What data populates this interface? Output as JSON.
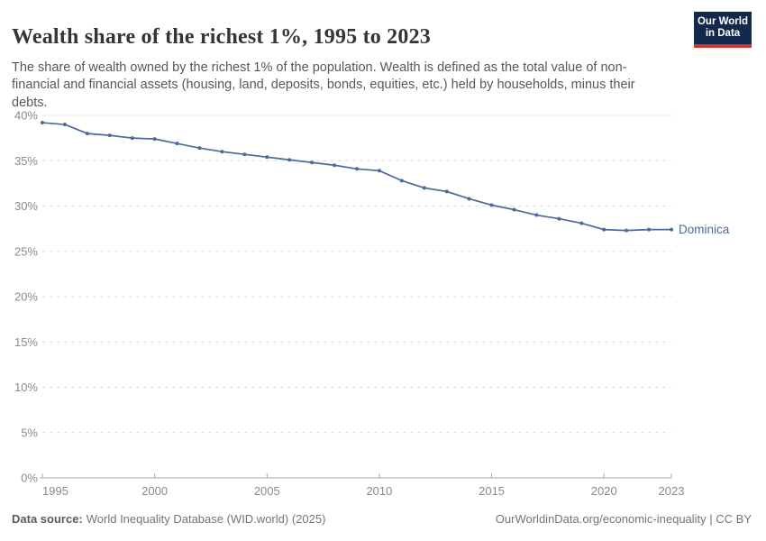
{
  "header": {
    "title": "Wealth share of the richest 1%, 1995 to 2023",
    "subtitle": "The share of wealth owned by the richest 1% of the population. Wealth is defined as the total value of non-financial and financial assets (housing, land, deposits, bonds, equities, etc.) held by households, minus their debts.",
    "logo": {
      "line1": "Our World",
      "line2": "in Data",
      "bg_color": "#12294d",
      "accent_color": "#d1342b"
    }
  },
  "chart_data": {
    "type": "line",
    "title": "Wealth share of the richest 1%, 1995 to 2023",
    "xlabel": "",
    "ylabel": "",
    "xlim": [
      1995,
      2023
    ],
    "ylim": [
      0,
      40
    ],
    "grid": "horizontal-dashed",
    "legend_position": "end-of-line-label",
    "x_ticks": [
      1995,
      2000,
      2005,
      2010,
      2015,
      2020,
      2023
    ],
    "y_ticks": [
      {
        "value": 0,
        "label": "0%"
      },
      {
        "value": 5,
        "label": "5%"
      },
      {
        "value": 10,
        "label": "10%"
      },
      {
        "value": 15,
        "label": "15%"
      },
      {
        "value": 20,
        "label": "20%"
      },
      {
        "value": 25,
        "label": "25%"
      },
      {
        "value": 30,
        "label": "30%"
      },
      {
        "value": 35,
        "label": "35%"
      },
      {
        "value": 40,
        "label": "40%"
      }
    ],
    "x": [
      1995,
      1996,
      1997,
      1998,
      1999,
      2000,
      2001,
      2002,
      2003,
      2004,
      2005,
      2006,
      2007,
      2008,
      2009,
      2010,
      2011,
      2012,
      2013,
      2014,
      2015,
      2016,
      2017,
      2018,
      2019,
      2020,
      2021,
      2022,
      2023
    ],
    "series": [
      {
        "name": "Dominica",
        "color": "#4c6a9c",
        "values": [
          39.2,
          39.0,
          38.0,
          37.8,
          37.5,
          37.4,
          36.9,
          36.4,
          36.0,
          35.7,
          35.4,
          35.1,
          34.8,
          34.5,
          34.1,
          33.9,
          32.8,
          32.0,
          31.6,
          30.8,
          30.1,
          29.6,
          29.0,
          28.6,
          28.1,
          27.4,
          27.3,
          27.4,
          27.4
        ]
      }
    ],
    "style": {
      "line_color": "#4c6a9c",
      "gridline_color": "#dcdcdc",
      "axis_color": "#a8a8a8",
      "tick_label_color": "#8a8a8a"
    }
  },
  "footer": {
    "datasource_label": "Data source:",
    "datasource_value": "World Inequality Database (WID.world) (2025)",
    "link": "OurWorldinData.org/economic-inequality | CC BY"
  }
}
